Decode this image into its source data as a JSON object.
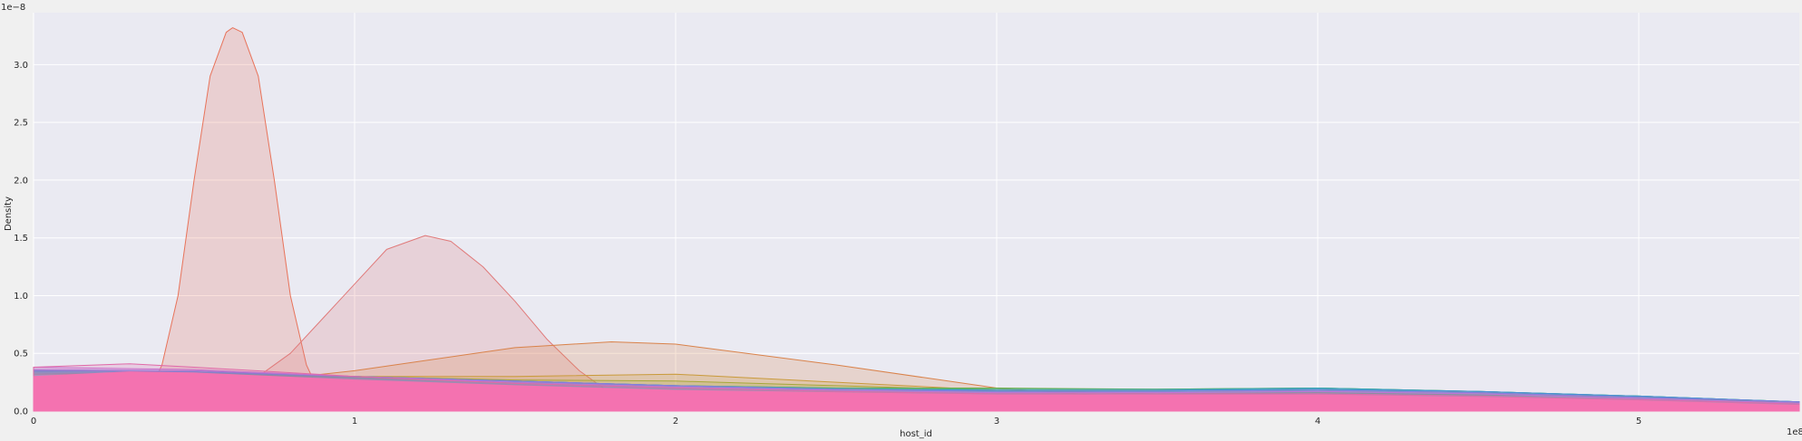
{
  "chart_data": {
    "type": "area",
    "title": "",
    "xlabel": "host_id",
    "ylabel": "Density",
    "x_offset_label": "1e8",
    "y_offset_label": "1e−8",
    "xlim": [
      0,
      5.5
    ],
    "ylim": [
      0,
      3.45
    ],
    "xticks": [
      0,
      1,
      2,
      3,
      4,
      5
    ],
    "xtick_labels": [
      "0",
      "1",
      "2",
      "3",
      "4",
      "5"
    ],
    "yticks": [
      0,
      0.5,
      1.0,
      1.5,
      2.0,
      2.5,
      3.0
    ],
    "ytick_labels": [
      "0.0",
      "0.5",
      "1.0",
      "1.5",
      "2.0",
      "2.5",
      "3.0"
    ],
    "grid": true,
    "legend": "none",
    "units_note": "x in units of 1e8, density in units of 1e-8",
    "series": [
      {
        "color": "#e8735a",
        "x": [
          0,
          0.3,
          0.35,
          0.4,
          0.45,
          0.5,
          0.55,
          0.6,
          0.62,
          0.65,
          0.7,
          0.75,
          0.8,
          0.85,
          0.9,
          1.0,
          5.5
        ],
        "y": [
          0,
          0,
          0.1,
          0.4,
          1.0,
          2.0,
          2.9,
          3.28,
          3.32,
          3.28,
          2.9,
          2.0,
          1.0,
          0.4,
          0.1,
          0,
          0
        ]
      },
      {
        "color": "#e07a7a",
        "x": [
          0.5,
          0.6,
          0.7,
          0.8,
          0.9,
          1.0,
          1.1,
          1.22,
          1.3,
          1.4,
          1.5,
          1.6,
          1.7,
          1.8,
          2.0
        ],
        "y": [
          0.05,
          0.15,
          0.3,
          0.5,
          0.8,
          1.1,
          1.4,
          1.52,
          1.47,
          1.25,
          0.95,
          0.62,
          0.35,
          0.15,
          0.03
        ]
      },
      {
        "color": "#d9824a",
        "x": [
          0,
          0.5,
          1.0,
          1.5,
          1.8,
          2.0,
          2.5,
          3.0,
          3.5,
          4.0,
          4.5,
          5.0,
          5.5
        ],
        "y": [
          0.2,
          0.2,
          0.35,
          0.55,
          0.6,
          0.58,
          0.4,
          0.2,
          0.1,
          0.06,
          0.04,
          0.03,
          0.02
        ]
      },
      {
        "color": "#c99a3a",
        "x": [
          0,
          0.5,
          1.0,
          1.5,
          2.0,
          2.5,
          3.0,
          3.5,
          4.0,
          4.5,
          5.0,
          5.5
        ],
        "y": [
          0.32,
          0.33,
          0.3,
          0.3,
          0.32,
          0.25,
          0.18,
          0.15,
          0.16,
          0.14,
          0.12,
          0.08
        ]
      },
      {
        "color": "#a6a83a",
        "x": [
          0,
          0.5,
          1.0,
          1.5,
          2.0,
          2.5,
          3.0,
          3.5,
          4.0,
          4.5,
          5.0,
          5.5
        ],
        "y": [
          0.3,
          0.32,
          0.3,
          0.27,
          0.26,
          0.22,
          0.18,
          0.17,
          0.18,
          0.16,
          0.12,
          0.07
        ]
      },
      {
        "color": "#6fb04a",
        "x": [
          0,
          0.5,
          1.0,
          1.5,
          2.0,
          2.5,
          3.0,
          3.5,
          4.0,
          4.5,
          5.0,
          5.5
        ],
        "y": [
          0.3,
          0.32,
          0.29,
          0.25,
          0.22,
          0.2,
          0.2,
          0.19,
          0.2,
          0.17,
          0.13,
          0.08
        ]
      },
      {
        "color": "#4cb08a",
        "x": [
          0,
          0.5,
          1.0,
          1.5,
          2.0,
          2.5,
          3.0,
          3.5,
          4.0,
          4.5,
          5.0,
          5.5
        ],
        "y": [
          0.33,
          0.33,
          0.3,
          0.26,
          0.22,
          0.2,
          0.19,
          0.19,
          0.2,
          0.17,
          0.13,
          0.08
        ]
      },
      {
        "color": "#3aa9b5",
        "x": [
          0,
          0.5,
          1.0,
          1.5,
          2.0,
          2.5,
          3.0,
          3.5,
          4.0,
          4.5,
          5.0,
          5.5
        ],
        "y": [
          0.34,
          0.34,
          0.3,
          0.26,
          0.22,
          0.19,
          0.18,
          0.18,
          0.2,
          0.17,
          0.13,
          0.08
        ]
      },
      {
        "color": "#4a8fd6",
        "x": [
          0,
          0.5,
          1.0,
          1.5,
          2.0,
          2.5,
          3.0,
          3.5,
          4.0,
          4.5,
          5.0,
          5.5
        ],
        "y": [
          0.35,
          0.34,
          0.3,
          0.26,
          0.22,
          0.19,
          0.18,
          0.18,
          0.19,
          0.17,
          0.13,
          0.08
        ]
      },
      {
        "color": "#8a7be0",
        "x": [
          0,
          0.5,
          1.0,
          1.5,
          2.0,
          2.5,
          3.0,
          3.5,
          4.0,
          4.5,
          5.0,
          5.5
        ],
        "y": [
          0.36,
          0.35,
          0.3,
          0.26,
          0.22,
          0.19,
          0.17,
          0.17,
          0.18,
          0.16,
          0.12,
          0.08
        ]
      },
      {
        "color": "#c373d6",
        "x": [
          0,
          0.5,
          1.0,
          1.5,
          2.0,
          2.5,
          3.0,
          3.5,
          4.0,
          4.5,
          5.0,
          5.5
        ],
        "y": [
          0.38,
          0.36,
          0.3,
          0.25,
          0.21,
          0.18,
          0.16,
          0.16,
          0.17,
          0.15,
          0.11,
          0.07
        ]
      },
      {
        "color": "#e06aa8",
        "x": [
          0,
          0.3,
          0.5,
          1.0,
          1.5,
          2.0,
          2.5,
          3.0,
          3.5,
          4.0,
          4.5,
          5.0,
          5.5
        ],
        "y": [
          0.38,
          0.41,
          0.38,
          0.3,
          0.24,
          0.2,
          0.17,
          0.15,
          0.15,
          0.15,
          0.13,
          0.1,
          0.06
        ]
      },
      {
        "color": "#f472b0",
        "x": [
          0,
          0.3,
          0.5,
          1.0,
          1.5,
          2.0,
          2.5,
          3.0,
          3.5,
          4.0,
          4.5,
          5.0,
          5.5
        ],
        "y": [
          0.3,
          0.34,
          0.33,
          0.27,
          0.22,
          0.18,
          0.16,
          0.14,
          0.14,
          0.14,
          0.12,
          0.09,
          0.05
        ],
        "opaque": true
      }
    ],
    "colors": {
      "plot_background": "#eaeaf2",
      "grid": "#ffffff",
      "figure_background": "#f0f0f0",
      "text": "#262626"
    }
  }
}
